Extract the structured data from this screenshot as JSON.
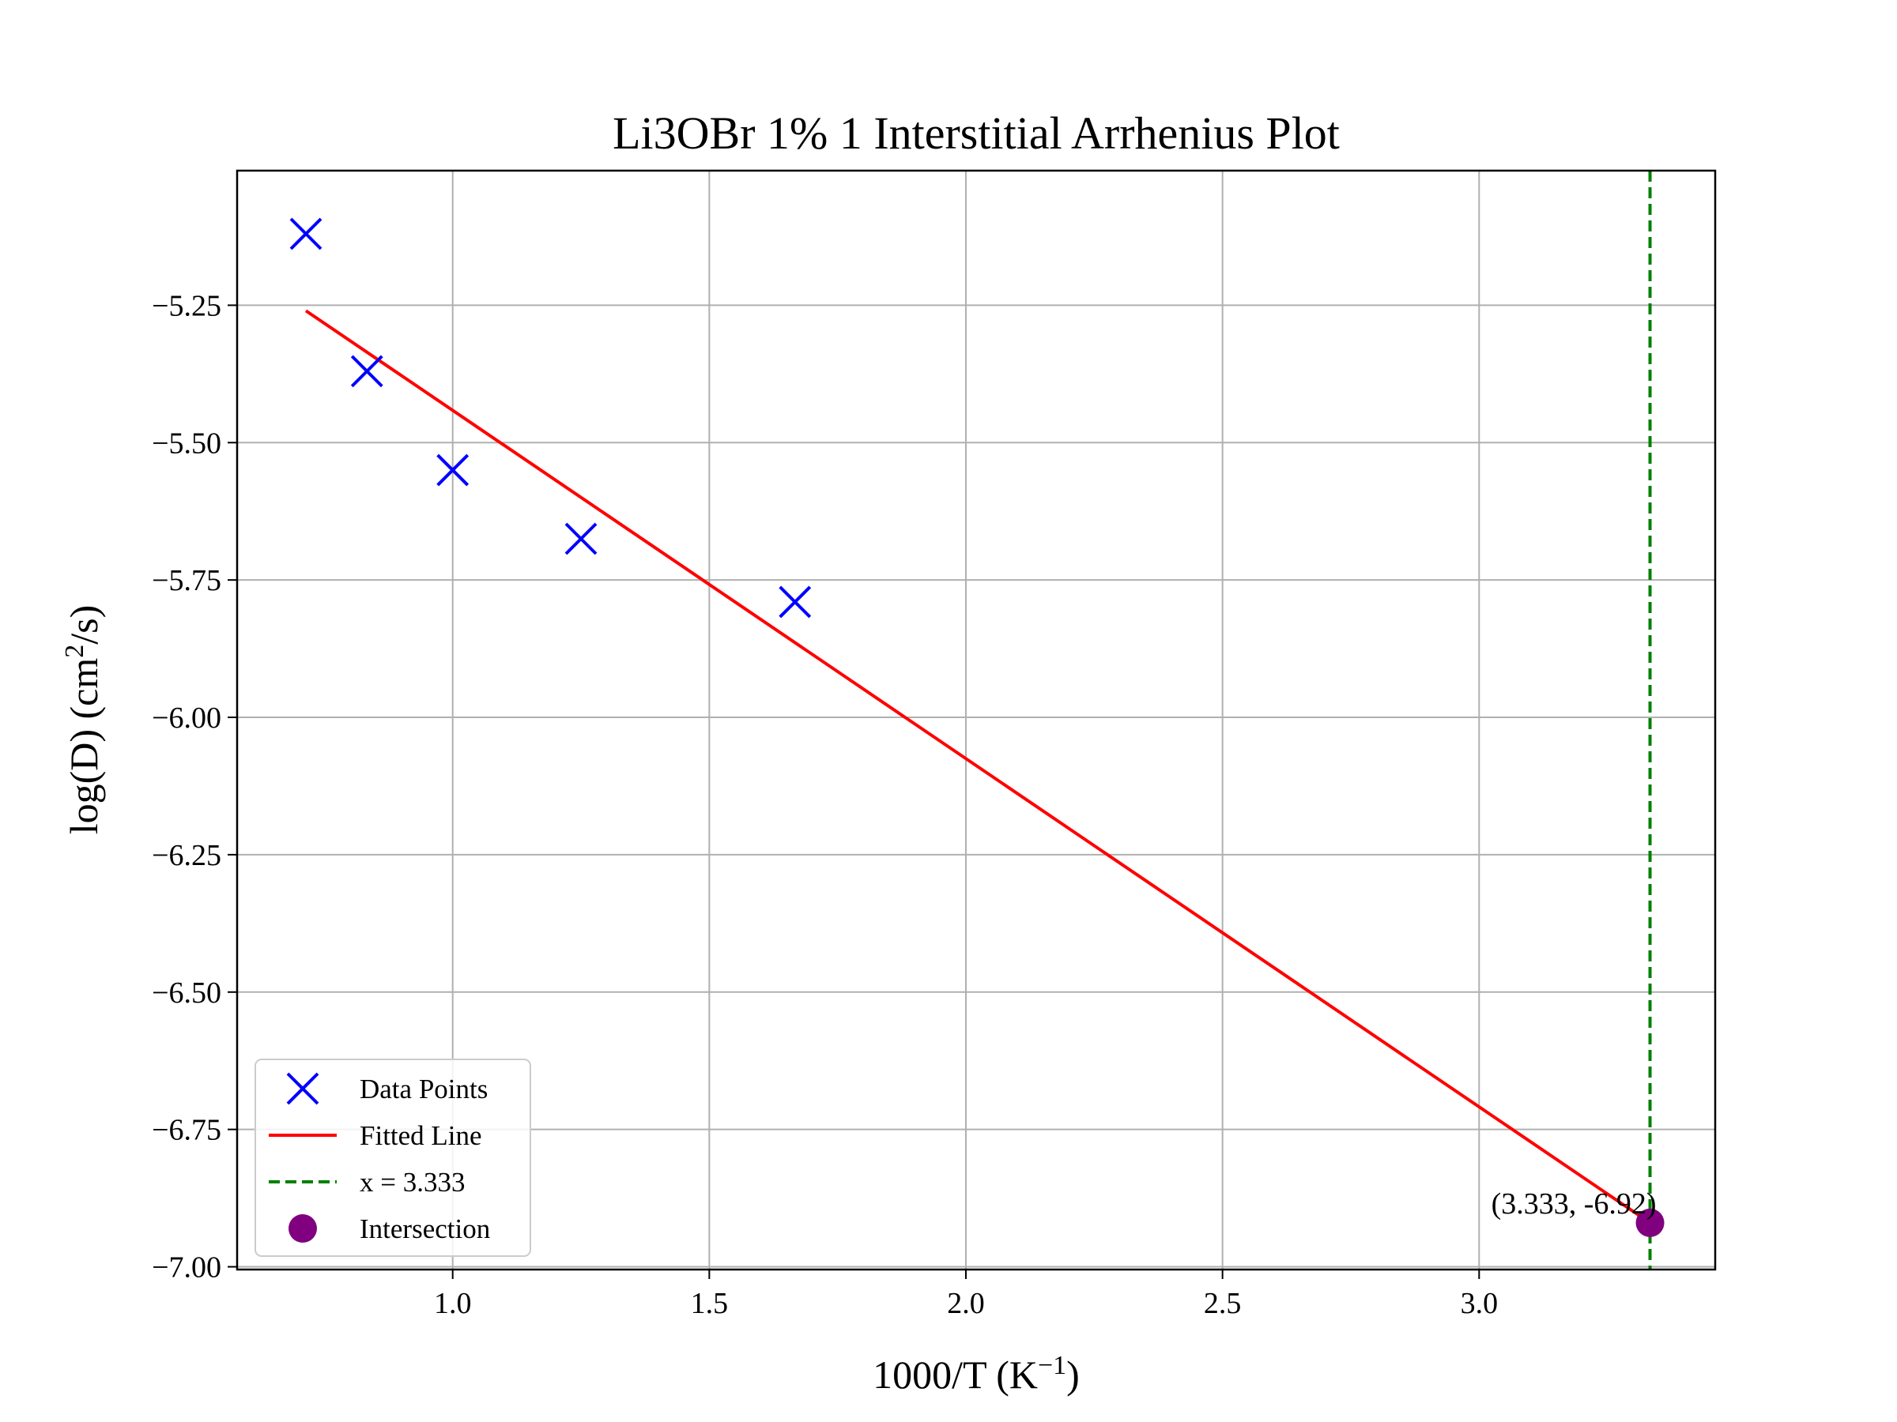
{
  "chart_data": {
    "type": "scatter",
    "title": "Li3OBr 1% 1 Interstitial Arrhenius Plot",
    "xlabel": {
      "base": "1000/T (K",
      "sup": "−1",
      "end": ")"
    },
    "ylabel": {
      "base": "log(D) (cm",
      "sup": "2",
      "end": "/s)"
    },
    "xlim": [
      0.58,
      3.46
    ],
    "ylim": [
      -7.005,
      -5.005
    ],
    "xticks": [
      1.0,
      1.5,
      2.0,
      2.5,
      3.0
    ],
    "xtick_labels": [
      "1.0",
      "1.5",
      "2.0",
      "2.5",
      "3.0"
    ],
    "yticks": [
      -5.25,
      -5.5,
      -5.75,
      -6.0,
      -6.25,
      -6.5,
      -6.75,
      -7.0
    ],
    "ytick_labels": [
      "−5.25",
      "−5.50",
      "−5.75",
      "−6.00",
      "−6.25",
      "−6.50",
      "−6.75",
      "−7.00"
    ],
    "grid": true,
    "legend_position": "lower-left",
    "series": [
      {
        "name": "Data Points",
        "kind": "scatter",
        "marker": "x",
        "color": "#0000ff",
        "x": [
          0.714,
          0.833,
          1.0,
          1.25,
          1.667
        ],
        "y": [
          -5.12,
          -5.37,
          -5.55,
          -5.675,
          -5.79
        ]
      },
      {
        "name": "Fitted Line",
        "kind": "line",
        "color": "#ff0000",
        "x": [
          0.714,
          3.333
        ],
        "y": [
          -5.26,
          -6.92
        ]
      },
      {
        "name": "x = 3.333",
        "kind": "vline",
        "color": "#008000",
        "x": 3.333
      },
      {
        "name": "Intersection",
        "kind": "point",
        "color": "#800080",
        "x": 3.333,
        "y": -6.92
      }
    ],
    "annotation": {
      "text": "(3.333, -6.92)",
      "x": 3.333,
      "y": -6.92
    }
  }
}
